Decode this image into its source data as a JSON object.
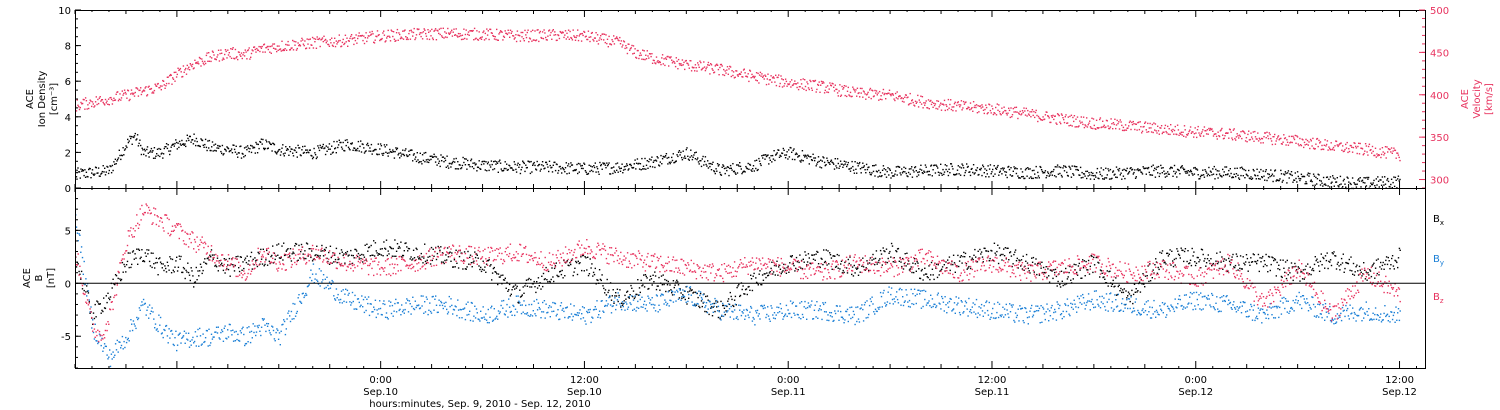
{
  "figure": {
    "xlabel": "hours:minutes, Sep.  9, 2010 - Sep. 12, 2010",
    "x_unit": "hours since 2010-09-09 00:00 UTC",
    "xlim": [
      6.0,
      85.5
    ],
    "x_ticks": [
      {
        "x": 24,
        "time": "0:00",
        "date": "Sep.10"
      },
      {
        "x": 36,
        "time": "12:00",
        "date": "Sep.10"
      },
      {
        "x": 48,
        "time": "0:00",
        "date": "Sep.11"
      },
      {
        "x": 60,
        "time": "12:00",
        "date": "Sep.11"
      },
      {
        "x": 72,
        "time": "0:00",
        "date": "Sep.12"
      },
      {
        "x": 84,
        "time": "12:00",
        "date": "Sep.12"
      }
    ],
    "colors": {
      "black": "#000000",
      "pink": "#e8335f",
      "blue": "#1a7fd6"
    }
  },
  "chart_data": [
    {
      "type": "scatter",
      "title": "",
      "ylabel": [
        "ACE",
        "Ion Density",
        "[cm⁻³]"
      ],
      "ylim": [
        0,
        10
      ],
      "yticks": [
        "0",
        "2",
        "4",
        "6",
        "8",
        "10"
      ],
      "y2label": [
        "ACE",
        "Velocity",
        "[km/s]"
      ],
      "y2lim": [
        290,
        500
      ],
      "y2ticks": [
        "300",
        "350",
        "400",
        "450",
        "500"
      ],
      "series": [
        {
          "axis": "left",
          "color": "#000000",
          "x": [
            6.0,
            8.0,
            9.0,
            9.5,
            10.0,
            11.0,
            12.0,
            13.0,
            14.0,
            15.0,
            16.0,
            17.0,
            18.0,
            20.0,
            22.0,
            24.0,
            26.0,
            28.0,
            30.0,
            32.0,
            34.0,
            36.0,
            38.0,
            40.0,
            42.0,
            44.0,
            46.0,
            47.0,
            48.0,
            50.0,
            52.0,
            54.0,
            56.0,
            58.0,
            60.0,
            62.0,
            64.0,
            66.0,
            68.0,
            70.0,
            72.0,
            74.0,
            76.0,
            78.0,
            80.0,
            82.0,
            84.0
          ],
          "y": [
            0.8,
            1.0,
            2.5,
            3.0,
            2.0,
            2.0,
            2.5,
            2.8,
            2.3,
            2.2,
            2.0,
            2.5,
            2.2,
            2.0,
            2.5,
            2.2,
            1.8,
            1.5,
            1.3,
            1.2,
            1.2,
            1.1,
            1.2,
            1.5,
            2.0,
            1.0,
            1.3,
            1.8,
            2.0,
            1.5,
            1.2,
            0.9,
            1.0,
            1.1,
            1.0,
            0.9,
            1.0,
            0.8,
            0.9,
            1.0,
            0.9,
            0.9,
            0.8,
            0.6,
            0.4,
            0.3,
            0.4
          ]
        },
        {
          "axis": "right",
          "color": "#e8335f",
          "x": [
            6.0,
            7.0,
            8.0,
            9.0,
            10.0,
            11.0,
            12.0,
            13.0,
            14.0,
            15.0,
            16.0,
            17.0,
            18.0,
            20.0,
            22.0,
            24.0,
            26.0,
            28.0,
            30.0,
            32.0,
            34.0,
            36.0,
            38.0,
            39.0,
            40.0,
            42.0,
            44.0,
            46.0,
            48.0,
            50.0,
            52.0,
            54.0,
            56.0,
            58.0,
            60.0,
            62.0,
            64.0,
            66.0,
            68.0,
            70.0,
            72.0,
            74.0,
            76.0,
            78.0,
            80.0,
            82.0,
            84.0
          ],
          "y": [
            388,
            392,
            396,
            400,
            405,
            410,
            425,
            438,
            445,
            450,
            448,
            455,
            458,
            462,
            465,
            470,
            472,
            473,
            472,
            470,
            471,
            470,
            462,
            450,
            444,
            436,
            430,
            422,
            415,
            410,
            402,
            400,
            392,
            387,
            384,
            378,
            372,
            367,
            364,
            360,
            357,
            354,
            350,
            346,
            340,
            336,
            330
          ]
        }
      ]
    },
    {
      "type": "scatter",
      "title": "",
      "ylabel": [
        "ACE",
        "B",
        "[nT]"
      ],
      "ylim": [
        -8,
        9
      ],
      "yticks": [
        "-5",
        "0",
        "5"
      ],
      "zero_line": true,
      "series": [
        {
          "name": "Bx",
          "color": "#000000",
          "x": [
            6.0,
            7.0,
            8.0,
            9.0,
            10.0,
            11.0,
            12.0,
            13.0,
            14.0,
            15.0,
            16.0,
            17.0,
            18.0,
            20.0,
            22.0,
            24.0,
            26.0,
            28.0,
            30.0,
            32.0,
            34.0,
            36.0,
            38.0,
            40.0,
            42.0,
            44.0,
            46.0,
            48.0,
            50.0,
            52.0,
            54.0,
            56.0,
            58.0,
            60.0,
            62.0,
            64.0,
            66.0,
            68.0,
            70.0,
            72.0,
            74.0,
            76.0,
            78.0,
            80.0,
            82.0,
            84.0
          ],
          "y": [
            2.5,
            -3.0,
            -1.0,
            2.0,
            3.0,
            1.5,
            2.0,
            0.5,
            2.5,
            1.5,
            2.0,
            2.5,
            3.0,
            3.0,
            2.5,
            3.5,
            3.0,
            2.5,
            2.0,
            -1.0,
            1.0,
            2.0,
            -1.5,
            0.5,
            -1.0,
            -2.5,
            0.5,
            2.0,
            2.5,
            1.5,
            3.0,
            1.0,
            2.0,
            3.0,
            2.0,
            0.5,
            2.0,
            -1.5,
            2.5,
            2.5,
            2.0,
            2.0,
            1.0,
            2.5,
            1.0,
            2.5
          ]
        },
        {
          "name": "By",
          "color": "#1a7fd6",
          "x": [
            6.0,
            7.0,
            8.0,
            9.0,
            10.0,
            11.0,
            12.0,
            13.0,
            14.0,
            15.0,
            16.0,
            17.0,
            18.0,
            20.0,
            22.0,
            24.0,
            26.0,
            28.0,
            30.0,
            32.0,
            34.0,
            36.0,
            38.0,
            40.0,
            42.0,
            44.0,
            46.0,
            48.0,
            50.0,
            52.0,
            54.0,
            56.0,
            58.0,
            60.0,
            62.0,
            64.0,
            66.0,
            68.0,
            70.0,
            72.0,
            74.0,
            76.0,
            78.0,
            80.0,
            82.0,
            84.0
          ],
          "y": [
            6.5,
            -4.0,
            -7.0,
            -5.0,
            -2.0,
            -4.0,
            -5.5,
            -5.0,
            -5.0,
            -4.5,
            -5.0,
            -4.0,
            -5.0,
            1.0,
            -1.5,
            -2.5,
            -2.0,
            -2.0,
            -3.0,
            -2.0,
            -2.5,
            -3.0,
            -1.5,
            -2.0,
            -1.0,
            -2.5,
            -3.0,
            -2.5,
            -2.5,
            -3.0,
            -1.0,
            -1.5,
            -2.0,
            -2.5,
            -3.0,
            -2.5,
            -1.5,
            -2.0,
            -2.5,
            -1.5,
            -2.0,
            -3.0,
            -1.5,
            -3.0,
            -2.5,
            -3.0
          ]
        },
        {
          "name": "Bz",
          "color": "#e8335f",
          "x": [
            6.0,
            7.0,
            7.5,
            8.0,
            9.0,
            10.0,
            11.0,
            12.0,
            13.0,
            14.0,
            15.0,
            16.0,
            17.0,
            18.0,
            20.0,
            22.0,
            24.0,
            26.0,
            28.0,
            30.0,
            32.0,
            34.0,
            36.0,
            38.0,
            40.0,
            42.0,
            44.0,
            46.0,
            48.0,
            50.0,
            52.0,
            54.0,
            56.0,
            58.0,
            60.0,
            62.0,
            64.0,
            66.0,
            68.0,
            70.0,
            72.0,
            74.0,
            76.0,
            78.0,
            80.0,
            82.0,
            84.0
          ],
          "y": [
            3.0,
            -4.0,
            -5.0,
            -3.0,
            4.0,
            7.0,
            6.0,
            5.0,
            4.0,
            3.0,
            2.0,
            1.0,
            3.0,
            2.0,
            3.0,
            2.0,
            1.5,
            2.0,
            3.0,
            2.5,
            3.0,
            2.0,
            3.5,
            2.5,
            2.0,
            1.5,
            1.0,
            2.0,
            1.5,
            1.0,
            2.0,
            1.5,
            2.5,
            1.0,
            2.0,
            1.0,
            1.5,
            2.0,
            1.0,
            1.5,
            0.5,
            2.0,
            -2.0,
            1.5,
            -3.0,
            1.0,
            -1.0
          ]
        }
      ],
      "legend": [
        {
          "label": "B",
          "sub": "x",
          "color": "#000000"
        },
        {
          "label": "B",
          "sub": "y",
          "color": "#1a7fd6"
        },
        {
          "label": "B",
          "sub": "z",
          "color": "#e8335f"
        }
      ],
      "legend_position": "right"
    }
  ]
}
